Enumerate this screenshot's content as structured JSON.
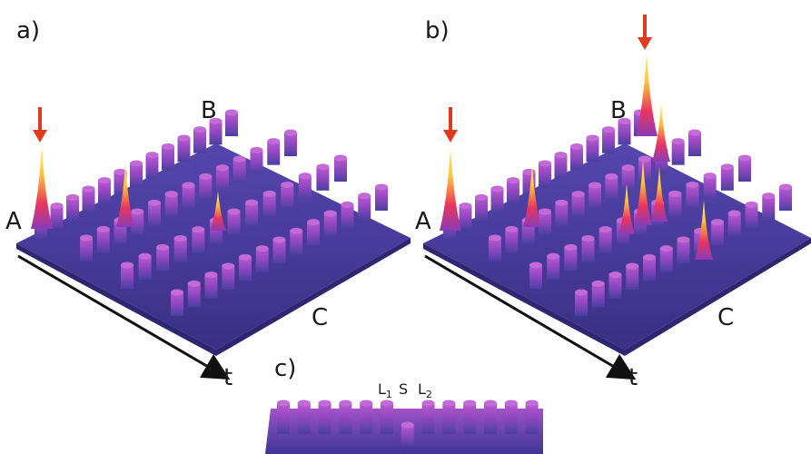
{
  "panels": {
    "a": {
      "label": "a)",
      "corners": {
        "A": "A",
        "B": "B",
        "C": "C"
      },
      "axis_label": "t"
    },
    "b": {
      "label": "b)",
      "corners": {
        "A": "A",
        "B": "B",
        "C": "C"
      },
      "axis_label": "t"
    },
    "c": {
      "label": "c)",
      "markers": {
        "L1": {
          "main": "L",
          "sub": "1"
        },
        "S": "S",
        "L2": {
          "main": "L",
          "sub": "2"
        }
      }
    }
  },
  "colors": {
    "surface_base": "#4b3f9e",
    "surface_dark": "#3a2f86",
    "pillar_top": "#b04fc8",
    "peak_mid": "#e0306a",
    "peak_top": "#ffe14a",
    "arrow": "#e03a1e",
    "axis": "#111111"
  }
}
